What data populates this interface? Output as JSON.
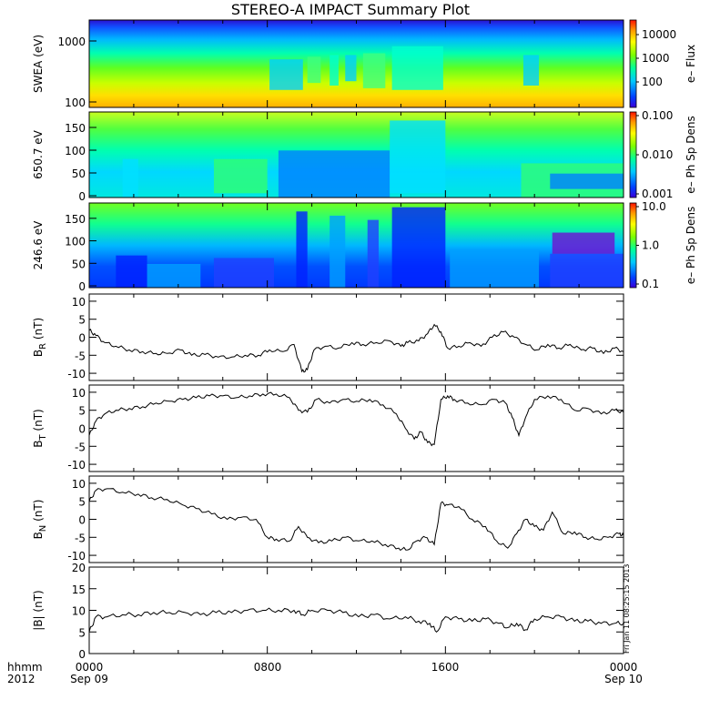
{
  "title": "STEREO-A IMPACT Summary Plot",
  "stamp": "Fri Jan 11 08:25:15 2013",
  "footer": {
    "left_top": "hhmm",
    "left_bottom": "2012",
    "start_time": "0000",
    "start_date": "Sep 09",
    "mid1": "0800",
    "mid2": "1600",
    "end_time": "0000",
    "end_date": "Sep 10"
  },
  "colors": {
    "line": "#000000",
    "background": "#ffffff"
  },
  "chart_data": [
    {
      "type": "heatmap",
      "ylabel": "SWEA (eV)",
      "yticks": [
        "1000",
        "100"
      ],
      "ylog": true,
      "colorbar_label": "e– Flux",
      "colorbar_ticks": [
        "10000",
        "1000",
        "100"
      ],
      "colormap": "rainbow"
    },
    {
      "type": "heatmap",
      "ylabel": "650.7 eV",
      "yticks": [
        "150",
        "100",
        "50",
        "0"
      ],
      "ylim": [
        0,
        180
      ],
      "colorbar_label": "e– Ph Sp Dens",
      "colorbar_ticks": [
        "0.100",
        "0.010",
        "0.001"
      ],
      "colormap": "rainbow"
    },
    {
      "type": "heatmap",
      "ylabel": "246.6 eV",
      "yticks": [
        "150",
        "100",
        "50",
        "0"
      ],
      "ylim": [
        0,
        180
      ],
      "colorbar_label": "e– Ph Sp Dens",
      "colorbar_ticks": [
        "10.0",
        "1.0",
        "0.1"
      ],
      "colormap": "rainbow"
    },
    {
      "type": "line",
      "ylabel": "B_R (nT)",
      "ylabel_main": "B",
      "ylabel_sub": "R",
      "ylabel_unit": " (nT)",
      "yticks": [
        "10",
        "5",
        "0",
        "-5",
        "-10"
      ],
      "ylim": [
        -12,
        12
      ],
      "x_hours": [
        0,
        0.3,
        0.7,
        1.2,
        1.8,
        2.4,
        3,
        3.5,
        4.1,
        4.6,
        5.2,
        5.8,
        6.4,
        7,
        7.6,
        8.1,
        8.7,
        9.2,
        9.55,
        9.8,
        10.1,
        10.6,
        11.2,
        11.8,
        12.3,
        12.9,
        13.5,
        14,
        14.3,
        14.8,
        15.2,
        15.5,
        15.8,
        16.1,
        16.6,
        17.1,
        17.6,
        18.1,
        18.6,
        19.1,
        19.6,
        20.1,
        20.6,
        21.1,
        21.6,
        22.1,
        22.6,
        23.1,
        23.6,
        24
      ],
      "values": [
        2,
        0.5,
        -1.5,
        -2.5,
        -3.5,
        -4,
        -4.5,
        -4.5,
        -3.5,
        -5,
        -4.8,
        -5.5,
        -5.5,
        -5,
        -5,
        -3.5,
        -4,
        -2,
        -9.5,
        -9,
        -3.5,
        -2.5,
        -3,
        -1.5,
        -2,
        -1.5,
        -1,
        -2.5,
        -1.5,
        -1,
        1,
        3.5,
        1.5,
        -3,
        -2.5,
        -1.5,
        -2.5,
        0,
        1.5,
        0,
        -2,
        -3.5,
        -2,
        -3,
        -2,
        -3.5,
        -3,
        -4.5,
        -3,
        -4
      ]
    },
    {
      "type": "line",
      "ylabel": "B_T (nT)",
      "ylabel_main": "B",
      "ylabel_sub": "T",
      "ylabel_unit": " (nT)",
      "yticks": [
        "10",
        "5",
        "0",
        "-5",
        "-10"
      ],
      "ylim": [
        -12,
        12
      ],
      "x_hours": [
        0,
        0.3,
        0.7,
        1.2,
        1.8,
        2.4,
        3,
        3.6,
        4.2,
        4.8,
        5.4,
        6,
        6.6,
        7.2,
        7.8,
        8.4,
        9,
        9.4,
        9.8,
        10.2,
        10.8,
        11.4,
        12,
        12.6,
        13.2,
        13.8,
        14.2,
        14.6,
        14.9,
        15.2,
        15.5,
        15.8,
        16.1,
        16.4,
        17,
        17.6,
        18.2,
        18.7,
        19,
        19.3,
        19.6,
        20,
        20.6,
        21.2,
        21.8,
        22.4,
        23,
        23.6,
        24
      ],
      "values": [
        -2,
        2,
        4,
        5,
        5.5,
        6,
        7,
        7.5,
        8,
        8.5,
        9,
        9,
        8.5,
        9,
        9.5,
        9.5,
        8.5,
        5,
        4.5,
        8,
        7,
        8,
        7.5,
        8,
        6.5,
        4,
        0,
        -3,
        -1,
        -4,
        -4.5,
        8,
        9,
        8,
        7,
        6.5,
        8,
        7,
        3,
        -2,
        3,
        8,
        9,
        8,
        5,
        5.5,
        4,
        5,
        4.5
      ]
    },
    {
      "type": "line",
      "ylabel": "B_N (nT)",
      "ylabel_main": "B",
      "ylabel_sub": "N",
      "ylabel_unit": " (nT)",
      "yticks": [
        "10",
        "5",
        "0",
        "-5",
        "-10"
      ],
      "ylim": [
        -12,
        12
      ],
      "x_hours": [
        0,
        0.3,
        0.8,
        1.5,
        2.2,
        2.8,
        3.5,
        4.2,
        4.8,
        5.5,
        6.2,
        6.8,
        7.5,
        8,
        8.4,
        9,
        9.4,
        9.8,
        10.3,
        10.9,
        11.5,
        12.1,
        12.7,
        13.3,
        13.9,
        14.3,
        14.7,
        15.1,
        15.5,
        15.8,
        16.1,
        16.6,
        17.2,
        17.8,
        18.3,
        18.8,
        19.2,
        19.6,
        20,
        20.4,
        20.8,
        21.3,
        21.8,
        22.3,
        22.8,
        23.3,
        23.8,
        24
      ],
      "values": [
        5,
        8,
        8.5,
        7.5,
        7,
        6,
        5.5,
        4,
        3,
        1.5,
        0,
        0.5,
        0,
        -5,
        -5.5,
        -6,
        -2,
        -5,
        -6.5,
        -6,
        -5,
        -6,
        -6,
        -7,
        -8,
        -8.5,
        -6,
        -5,
        -7,
        4.5,
        4,
        3.5,
        0,
        -2,
        -6,
        -8,
        -4,
        0,
        -2,
        -3,
        2,
        -4,
        -3.5,
        -5,
        -5.5,
        -5,
        -4,
        -4.5
      ]
    },
    {
      "type": "line",
      "ylabel": "|B| (nT)",
      "ylabel_main": "|B|",
      "ylabel_sub": "",
      "ylabel_unit": " (nT)",
      "yticks": [
        "20",
        "15",
        "10",
        "5",
        "0"
      ],
      "ylim": [
        0,
        20
      ],
      "x_hours": [
        0,
        0.3,
        0.8,
        1.5,
        2.2,
        2.9,
        3.6,
        4.3,
        5,
        5.7,
        6.4,
        7.1,
        7.8,
        8.5,
        9.2,
        9.6,
        10,
        10.7,
        11.4,
        12.1,
        12.8,
        13.5,
        14.2,
        14.8,
        15.3,
        15.6,
        16,
        16.6,
        17.2,
        17.8,
        18.4,
        18.8,
        19.2,
        19.6,
        20,
        20.6,
        21.2,
        21.8,
        22.4,
        23,
        23.6,
        24
      ],
      "values": [
        5,
        8.5,
        8.5,
        9,
        9,
        9.5,
        9.5,
        9.5,
        9,
        9.5,
        9.5,
        10,
        10,
        10,
        10,
        9,
        10,
        10,
        9.5,
        8.5,
        9,
        8,
        8.5,
        7.5,
        7,
        5,
        8.5,
        8,
        7.5,
        8,
        7,
        6,
        7,
        5.5,
        8,
        8.5,
        8.5,
        7.5,
        7.5,
        7,
        7,
        7
      ]
    }
  ]
}
